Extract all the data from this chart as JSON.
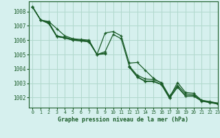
{
  "title": "Graphe pression niveau de la mer (hPa)",
  "bg_color": "#d6f0ee",
  "grid_color": "#b0d8cc",
  "line_color": "#1a5c28",
  "xlim": [
    -0.5,
    23
  ],
  "ylim": [
    1001.3,
    1008.7
  ],
  "yticks": [
    1002,
    1003,
    1004,
    1005,
    1006,
    1007,
    1008
  ],
  "xticks": [
    0,
    1,
    2,
    3,
    4,
    5,
    6,
    7,
    8,
    9,
    10,
    11,
    12,
    13,
    14,
    15,
    16,
    17,
    18,
    19,
    20,
    21,
    22,
    23
  ],
  "series": [
    [
      1008.3,
      1007.4,
      1007.3,
      1006.8,
      1006.3,
      1006.1,
      1006.05,
      1006.0,
      1005.0,
      1006.5,
      1006.6,
      1006.3,
      1004.4,
      1004.45,
      1003.9,
      1003.35,
      1003.0,
      1002.0,
      1003.05,
      1002.35,
      1002.3,
      1001.8,
      1001.7,
      1001.6
    ],
    [
      1008.3,
      1007.4,
      1007.25,
      1006.3,
      1006.2,
      1006.05,
      1006.0,
      1005.95,
      1005.0,
      1005.2,
      1006.4,
      1006.1,
      1004.2,
      1003.55,
      1003.3,
      1003.25,
      1003.05,
      1002.1,
      1002.85,
      1002.25,
      1002.2,
      1001.82,
      1001.72,
      1001.62
    ],
    [
      1008.3,
      1007.4,
      1007.2,
      1006.25,
      1006.15,
      1006.0,
      1005.95,
      1005.9,
      1005.0,
      1005.1,
      null,
      null,
      1004.15,
      1003.45,
      1003.15,
      1003.15,
      1002.92,
      1001.98,
      1002.75,
      1002.12,
      1002.12,
      1001.77,
      1001.67,
      1001.57
    ],
    [
      1008.3,
      1007.4,
      1007.15,
      1006.25,
      1006.15,
      1006.0,
      1005.95,
      1005.88,
      1005.0,
      1005.05,
      null,
      null,
      1004.12,
      1003.42,
      1003.12,
      1003.12,
      1002.9,
      1001.95,
      1002.72,
      1002.1,
      1002.1,
      1001.75,
      1001.65,
      1001.55
    ]
  ]
}
